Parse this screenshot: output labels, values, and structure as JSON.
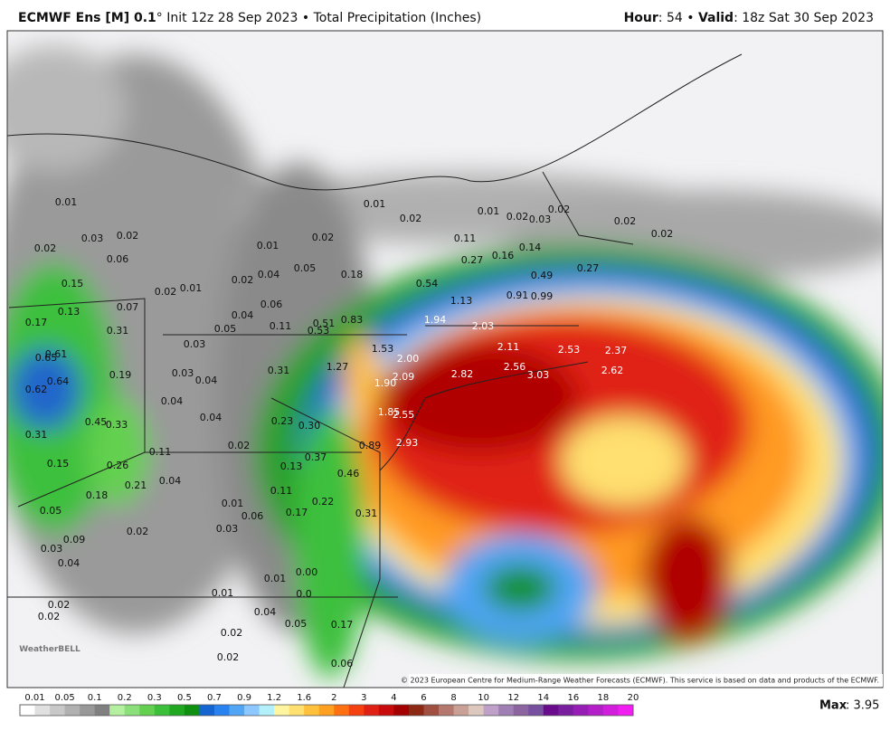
{
  "header": {
    "left_bold": "ECMWF Ens [M] 0.1",
    "left_rest": "° Init 12z 28 Sep 2023 • Total Precipitation (Inches)",
    "hour_label": "Hour",
    "hour_value": ": 54 • ",
    "valid_label": "Valid",
    "valid_value": ": 18z Sat 30 Sep 2023"
  },
  "map": {
    "labels": [
      "0.01",
      "0.02",
      "0.03",
      "0.02",
      "0.06",
      "0.15",
      "0.13",
      "0.17",
      "0.02",
      "0.01",
      "0.07",
      "0.31",
      "0.61",
      "0.65",
      "0.62",
      "0.64",
      "0.19",
      "0.03",
      "0.03",
      "0.04",
      "0.04",
      "0.45",
      "0.33",
      "0.31",
      "0.04",
      "0.11",
      "0.02",
      "0.15",
      "0.26",
      "0.21",
      "0.04",
      "0.18",
      "0.05",
      "0.02",
      "0.01",
      "0.03",
      "0.06",
      "0.09",
      "0.03",
      "0.04",
      "0.01",
      "0.01",
      "0.02",
      "0.02",
      "0.04",
      "0.02",
      "0.02",
      "0.01",
      "0.02",
      "0.01",
      "0.02",
      "0.03",
      "0.02",
      "0.02",
      "0.02",
      "0.01",
      "0.02",
      "0.11",
      "0.14",
      "0.16",
      "0.27",
      "0.27",
      "0.05",
      "0.04",
      "0.02",
      "0.18",
      "0.49",
      "0.54",
      "0.91",
      "0.99",
      "1.13",
      "0.04",
      "0.06",
      "0.05",
      "0.11",
      "0.51",
      "0.53",
      "0.83",
      "1.94",
      "2.03",
      "1.53",
      "2.11",
      "2.53",
      "2.37",
      "2.00",
      "1.27",
      "2.09",
      "2.82",
      "2.56",
      "3.03",
      "2.62",
      "1.90",
      "0.31",
      "1.85",
      "2.55",
      "0.23",
      "0.30",
      "0.89",
      "2.93",
      "0.37",
      "0.13",
      "0.46",
      "0.11",
      "0.22",
      "0.17",
      "0.31",
      "0.00",
      "0.0",
      "0.05",
      "0.17",
      "0.06"
    ],
    "logo": "WeatherBELL",
    "copyright": "© 2023 European Centre for Medium-Range Weather Forecasts (ECMWF). This service is based on data and products of the ECMWF."
  },
  "scale": {
    "labels": [
      "0.01",
      "0.05",
      "0.1",
      "0.2",
      "0.3",
      "0.5",
      "0.7",
      "0.9",
      "1.2",
      "1.6",
      "2",
      "3",
      "4",
      "6",
      "8",
      "10",
      "12",
      "14",
      "16",
      "18",
      "20"
    ],
    "colors": [
      "#ffffff",
      "#e0e0e0",
      "#c8c8c8",
      "#b0b0b0",
      "#989898",
      "#808080",
      "#b4f0a0",
      "#8ce07c",
      "#64d050",
      "#3cc03c",
      "#20a820",
      "#109010",
      "#1464d2",
      "#2882f0",
      "#50a5f5",
      "#8cc8ff",
      "#b4f0fa",
      "#fff5a0",
      "#ffe070",
      "#ffc03c",
      "#ffa020",
      "#ff7010",
      "#f54010",
      "#e02014",
      "#c80a0a",
      "#a50000",
      "#8c2814",
      "#a05040",
      "#b4786e",
      "#c8a096",
      "#dcc8be",
      "#bea0c8",
      "#a080b4",
      "#8c64a0",
      "#7850a0",
      "#6a0a8c",
      "#7a1ea0",
      "#961eb4",
      "#b41ec8",
      "#d21edc",
      "#f01ef0"
    ]
  },
  "max": {
    "label": "Max",
    "value": ": 3.95"
  }
}
